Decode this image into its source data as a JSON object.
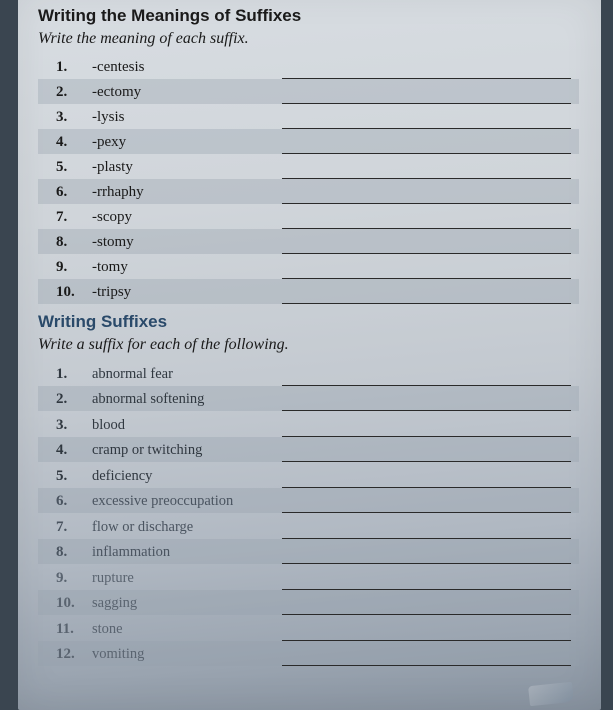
{
  "section1": {
    "heading": "Writing the Meanings of Suffixes",
    "instruction": "Write the meaning of each suffix.",
    "items": [
      {
        "n": "1.",
        "t": "-centesis"
      },
      {
        "n": "2.",
        "t": "-ectomy"
      },
      {
        "n": "3.",
        "t": "-lysis"
      },
      {
        "n": "4.",
        "t": "-pexy"
      },
      {
        "n": "5.",
        "t": "-plasty"
      },
      {
        "n": "6.",
        "t": "-rrhaphy"
      },
      {
        "n": "7.",
        "t": "-scopy"
      },
      {
        "n": "8.",
        "t": "-stomy"
      },
      {
        "n": "9.",
        "t": "-tomy"
      },
      {
        "n": "10.",
        "t": "-tripsy"
      }
    ]
  },
  "section2": {
    "heading": "Writing Suffixes",
    "instruction": "Write a suffix for each of the following.",
    "items": [
      {
        "n": "1.",
        "t": "abnormal fear"
      },
      {
        "n": "2.",
        "t": "abnormal softening"
      },
      {
        "n": "3.",
        "t": "blood"
      },
      {
        "n": "4.",
        "t": "cramp or twitching"
      },
      {
        "n": "5.",
        "t": "deficiency"
      },
      {
        "n": "6.",
        "t": "excessive preoccupation"
      },
      {
        "n": "7.",
        "t": "flow or discharge"
      },
      {
        "n": "8.",
        "t": "inflammation"
      },
      {
        "n": "9.",
        "t": "rupture"
      },
      {
        "n": "10.",
        "t": "sagging"
      },
      {
        "n": "11.",
        "t": "stone"
      },
      {
        "n": "12.",
        "t": "vomiting"
      }
    ]
  }
}
